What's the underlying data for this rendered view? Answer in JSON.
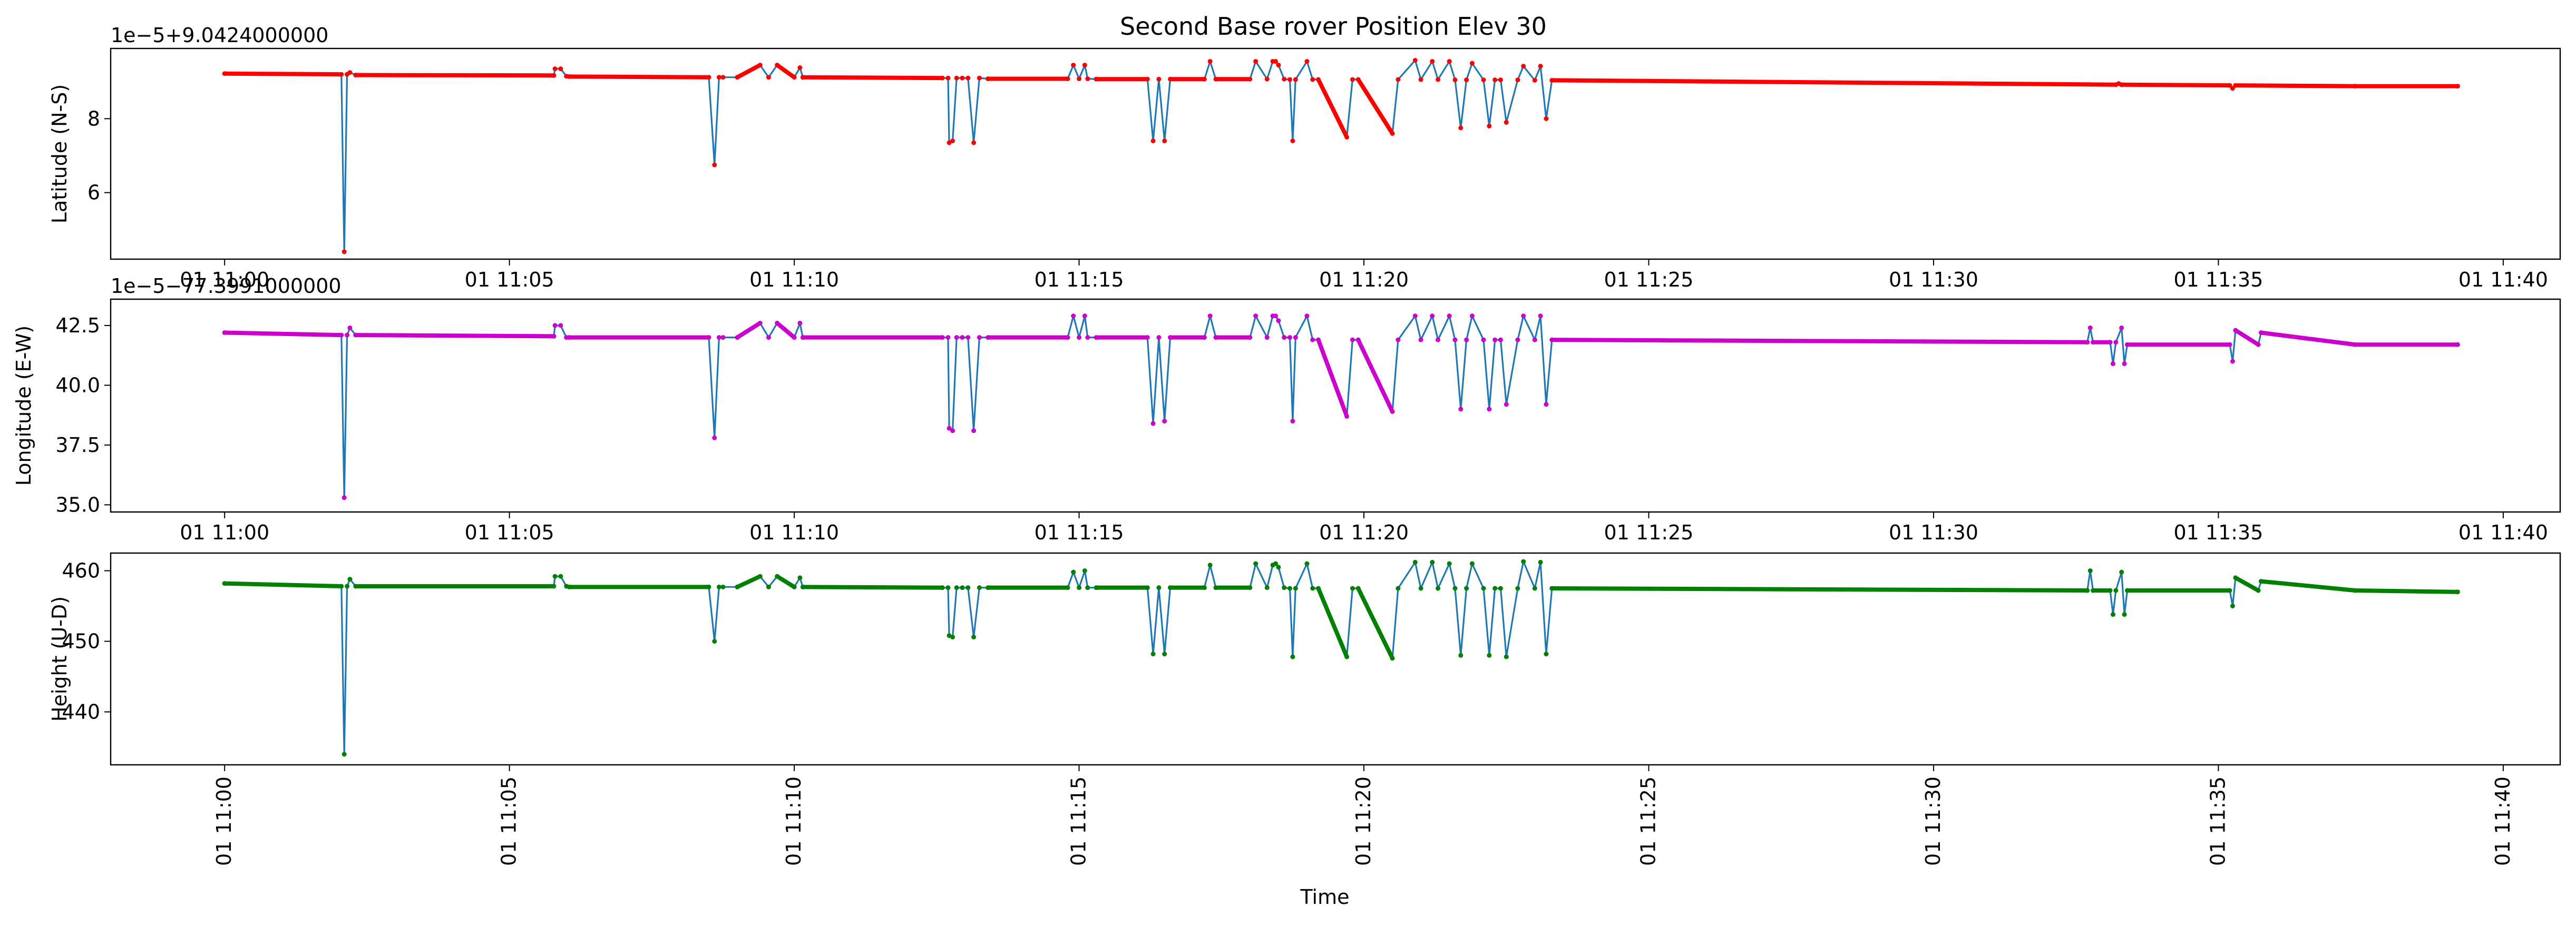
{
  "chart_data": [
    {
      "type": "line",
      "title": "Second Base rover Position Elev 30",
      "xlabel": "",
      "ylabel": "Latitude (N-S)",
      "offset_text": "1e−5+9.0424000000",
      "x_ticks": [
        "01 11:00",
        "01 11:05",
        "01 11:10",
        "01 11:15",
        "01 11:20",
        "01 11:25",
        "01 11:30",
        "01 11:35",
        "01 11:40"
      ],
      "y_ticks": [
        "6",
        "8"
      ],
      "xlim": [
        -2.0,
        41.0
      ],
      "ylim": [
        4.2,
        9.9
      ],
      "grid": false,
      "line_color": "#1f77b4",
      "marker_color": "#ff0000",
      "series": [
        {
          "x": [
            0.0,
            2.05,
            2.1,
            2.15,
            2.2,
            2.3,
            5.78,
            5.8,
            5.9,
            6.0,
            6.05,
            8.5,
            8.6,
            8.68,
            8.75,
            9.0,
            9.4,
            9.55,
            9.7,
            10.0,
            10.1,
            10.15,
            12.6,
            12.7,
            12.72,
            12.78,
            12.85,
            12.95,
            13.05,
            13.15,
            13.25,
            13.4,
            14.8,
            14.9,
            15.0,
            15.1,
            15.15,
            15.3,
            16.2,
            16.3,
            16.4,
            16.5,
            16.6,
            17.2,
            17.3,
            17.4,
            18.0,
            18.1,
            18.3,
            18.4,
            18.45,
            18.5,
            18.6,
            18.7,
            18.75,
            18.8,
            19.0,
            19.1,
            19.2,
            19.7,
            19.8,
            19.9,
            20.5,
            20.6,
            20.9,
            21.0,
            21.2,
            21.3,
            21.5,
            21.6,
            21.7,
            21.8,
            21.9,
            22.1,
            22.2,
            22.3,
            22.4,
            22.5,
            22.7,
            22.8,
            23.0,
            23.1,
            23.2,
            23.3,
            33.2,
            33.25,
            33.3,
            35.2,
            35.25,
            35.3,
            37.4,
            39.2
          ],
          "y": [
            9.22,
            9.2,
            4.4,
            9.2,
            9.25,
            9.18,
            9.17,
            9.35,
            9.35,
            9.15,
            9.14,
            9.12,
            6.75,
            9.12,
            9.12,
            9.12,
            9.45,
            9.12,
            9.45,
            9.12,
            9.38,
            9.12,
            9.1,
            9.1,
            7.35,
            7.4,
            9.1,
            9.1,
            9.1,
            7.35,
            9.1,
            9.08,
            9.08,
            9.45,
            9.08,
            9.45,
            9.08,
            9.07,
            9.07,
            7.4,
            9.07,
            7.4,
            9.07,
            9.07,
            9.55,
            9.07,
            9.07,
            9.55,
            9.07,
            9.55,
            9.55,
            9.45,
            9.07,
            9.06,
            7.4,
            9.06,
            9.55,
            9.06,
            9.06,
            7.5,
            9.06,
            9.06,
            7.6,
            9.06,
            9.58,
            9.06,
            9.55,
            9.06,
            9.55,
            9.05,
            7.75,
            9.05,
            9.5,
            9.05,
            7.8,
            9.05,
            9.05,
            7.9,
            9.05,
            9.42,
            9.04,
            9.42,
            8.0,
            9.04,
            8.92,
            8.95,
            8.92,
            8.9,
            8.82,
            8.9,
            8.88,
            8.88
          ]
        }
      ]
    },
    {
      "type": "line",
      "title": "",
      "xlabel": "",
      "ylabel": "Longitude (E-W)",
      "offset_text": "1e−5−77.3991000000",
      "x_ticks": [
        "01 11:00",
        "01 11:05",
        "01 11:10",
        "01 11:15",
        "01 11:20",
        "01 11:25",
        "01 11:30",
        "01 11:35",
        "01 11:40"
      ],
      "y_ticks": [
        "35.0",
        "37.5",
        "40.0",
        "42.5"
      ],
      "xlim": [
        -2.0,
        41.0
      ],
      "ylim": [
        34.7,
        43.6
      ],
      "grid": false,
      "line_color": "#1f77b4",
      "marker_color": "#cc00cc",
      "series": [
        {
          "x": [
            0.0,
            2.05,
            2.1,
            2.15,
            2.2,
            2.3,
            5.78,
            5.8,
            5.9,
            6.0,
            6.05,
            8.5,
            8.6,
            8.68,
            8.75,
            9.0,
            9.4,
            9.55,
            9.7,
            10.0,
            10.1,
            10.15,
            12.6,
            12.7,
            12.72,
            12.78,
            12.85,
            12.95,
            13.05,
            13.15,
            13.25,
            13.4,
            14.8,
            14.9,
            15.0,
            15.1,
            15.15,
            15.3,
            16.2,
            16.3,
            16.4,
            16.5,
            16.6,
            17.2,
            17.3,
            17.4,
            18.0,
            18.1,
            18.3,
            18.4,
            18.45,
            18.5,
            18.6,
            18.7,
            18.75,
            18.8,
            19.0,
            19.1,
            19.2,
            19.7,
            19.8,
            19.9,
            20.5,
            20.6,
            20.9,
            21.0,
            21.2,
            21.3,
            21.5,
            21.6,
            21.7,
            21.8,
            21.9,
            22.1,
            22.2,
            22.3,
            22.4,
            22.5,
            22.7,
            22.8,
            23.0,
            23.1,
            23.2,
            23.3,
            32.7,
            32.75,
            32.8,
            33.1,
            33.15,
            33.2,
            33.3,
            33.35,
            33.4,
            35.2,
            35.25,
            35.3,
            35.7,
            35.75,
            37.4,
            39.2
          ],
          "y": [
            42.2,
            42.1,
            35.3,
            42.1,
            42.4,
            42.1,
            42.05,
            42.5,
            42.5,
            42.0,
            42.0,
            42.0,
            37.8,
            42.0,
            42.0,
            42.0,
            42.6,
            42.0,
            42.6,
            42.0,
            42.6,
            42.0,
            42.0,
            42.0,
            38.2,
            38.1,
            42.0,
            42.0,
            42.0,
            38.1,
            42.0,
            42.0,
            42.0,
            42.9,
            42.0,
            42.9,
            42.0,
            42.0,
            42.0,
            38.4,
            42.0,
            38.5,
            42.0,
            42.0,
            42.9,
            42.0,
            42.0,
            42.9,
            42.0,
            42.9,
            42.9,
            42.7,
            42.0,
            42.0,
            38.5,
            42.0,
            42.9,
            41.9,
            41.9,
            38.7,
            41.9,
            41.9,
            38.9,
            41.9,
            42.9,
            41.9,
            42.9,
            41.9,
            42.9,
            41.9,
            39.0,
            41.9,
            42.9,
            41.9,
            39.0,
            41.9,
            41.9,
            39.2,
            41.9,
            42.9,
            41.9,
            42.9,
            39.2,
            41.9,
            41.8,
            42.4,
            41.8,
            41.8,
            40.9,
            41.8,
            42.4,
            40.9,
            41.7,
            41.7,
            41.0,
            42.3,
            41.7,
            42.2,
            41.7,
            41.7
          ]
        }
      ]
    },
    {
      "type": "line",
      "title": "",
      "xlabel": "Time",
      "ylabel": "Height (U-D)",
      "offset_text": "",
      "x_ticks": [
        "01 11:00",
        "01 11:05",
        "01 11:10",
        "01 11:15",
        "01 11:20",
        "01 11:25",
        "01 11:30",
        "01 11:35",
        "01 11:40"
      ],
      "y_ticks": [
        "440",
        "450",
        "460"
      ],
      "xlim": [
        -2.0,
        41.0
      ],
      "ylim": [
        432.5,
        462.5
      ],
      "grid": false,
      "line_color": "#1f77b4",
      "marker_color": "#008000",
      "series": [
        {
          "x": [
            0.0,
            2.05,
            2.1,
            2.15,
            2.2,
            2.3,
            5.78,
            5.8,
            5.9,
            6.0,
            6.05,
            8.5,
            8.6,
            8.68,
            8.75,
            9.0,
            9.4,
            9.55,
            9.7,
            10.0,
            10.1,
            10.15,
            12.6,
            12.7,
            12.72,
            12.78,
            12.85,
            12.95,
            13.05,
            13.15,
            13.25,
            13.4,
            14.8,
            14.9,
            15.0,
            15.1,
            15.15,
            15.3,
            16.2,
            16.3,
            16.4,
            16.5,
            16.6,
            17.2,
            17.3,
            17.4,
            18.0,
            18.1,
            18.3,
            18.4,
            18.45,
            18.5,
            18.6,
            18.7,
            18.75,
            18.8,
            19.0,
            19.1,
            19.2,
            19.7,
            19.8,
            19.9,
            20.5,
            20.6,
            20.9,
            21.0,
            21.2,
            21.3,
            21.5,
            21.6,
            21.7,
            21.8,
            21.9,
            22.1,
            22.2,
            22.3,
            22.4,
            22.5,
            22.7,
            22.8,
            23.0,
            23.1,
            23.2,
            23.3,
            32.7,
            32.75,
            32.8,
            33.1,
            33.15,
            33.2,
            33.3,
            33.35,
            33.4,
            35.2,
            35.25,
            35.3,
            35.7,
            35.75,
            37.4,
            39.2
          ],
          "y": [
            458.2,
            457.8,
            434.0,
            457.8,
            458.8,
            457.8,
            457.8,
            459.2,
            459.2,
            457.8,
            457.7,
            457.7,
            450.0,
            457.7,
            457.7,
            457.7,
            459.2,
            457.7,
            459.2,
            457.7,
            459.0,
            457.7,
            457.6,
            457.6,
            450.8,
            450.6,
            457.6,
            457.6,
            457.6,
            450.6,
            457.6,
            457.6,
            457.6,
            459.8,
            457.6,
            460.0,
            457.6,
            457.6,
            457.6,
            448.2,
            457.6,
            448.2,
            457.6,
            457.6,
            460.8,
            457.6,
            457.6,
            461.0,
            457.6,
            460.8,
            461.0,
            460.5,
            457.6,
            457.5,
            447.8,
            457.5,
            461.0,
            457.5,
            457.5,
            447.8,
            457.5,
            457.5,
            447.6,
            457.5,
            461.2,
            457.5,
            461.2,
            457.5,
            461.0,
            457.5,
            448.0,
            457.5,
            461.0,
            457.5,
            448.0,
            457.5,
            457.5,
            447.8,
            457.5,
            461.3,
            457.5,
            461.2,
            448.2,
            457.5,
            457.2,
            460.0,
            457.2,
            457.2,
            453.8,
            457.2,
            459.8,
            453.8,
            457.2,
            457.2,
            455.0,
            459.0,
            457.2,
            458.5,
            457.2,
            457.0
          ]
        }
      ]
    }
  ]
}
